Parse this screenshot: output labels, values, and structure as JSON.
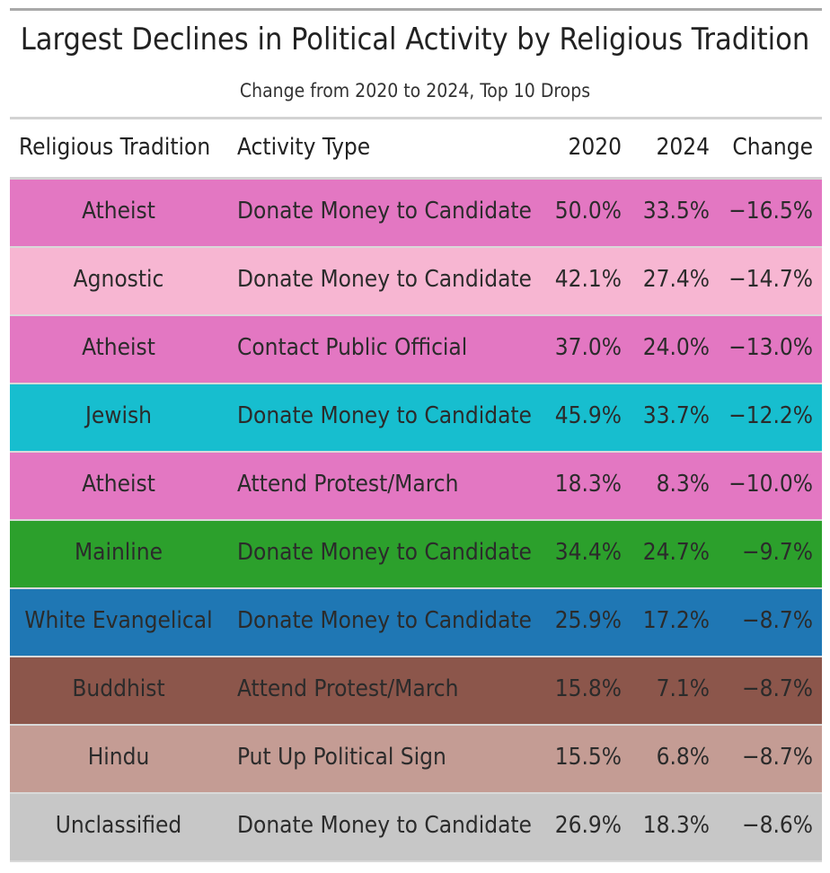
{
  "chart_data": {
    "type": "table",
    "title": "Largest Declines in Political Activity by Religious Tradition",
    "subtitle": "Change from 2020 to 2024, Top 10 Drops",
    "columns": [
      "Religious Tradition",
      "Activity Type",
      "2020",
      "2024",
      "Change"
    ],
    "rows": [
      {
        "tradition": "Atheist",
        "activity": "Donate Money to Candidate",
        "v2020": "50.0%",
        "v2024": "33.5%",
        "change": "−16.5%",
        "color": "#e377c2"
      },
      {
        "tradition": "Agnostic",
        "activity": "Donate Money to Candidate",
        "v2020": "42.1%",
        "v2024": "27.4%",
        "change": "−14.7%",
        "color": "#f7b6d2"
      },
      {
        "tradition": "Atheist",
        "activity": "Contact Public Official",
        "v2020": "37.0%",
        "v2024": "24.0%",
        "change": "−13.0%",
        "color": "#e377c2"
      },
      {
        "tradition": "Jewish",
        "activity": "Donate Money to Candidate",
        "v2020": "45.9%",
        "v2024": "33.7%",
        "change": "−12.2%",
        "color": "#17becf"
      },
      {
        "tradition": "Atheist",
        "activity": "Attend Protest/March",
        "v2020": "18.3%",
        "v2024": "8.3%",
        "change": "−10.0%",
        "color": "#e377c2"
      },
      {
        "tradition": "Mainline",
        "activity": "Donate Money to Candidate",
        "v2020": "34.4%",
        "v2024": "24.7%",
        "change": "−9.7%",
        "color": "#2ca02c"
      },
      {
        "tradition": "White Evangelical",
        "activity": "Donate Money to Candidate",
        "v2020": "25.9%",
        "v2024": "17.2%",
        "change": "−8.7%",
        "color": "#1f77b4"
      },
      {
        "tradition": "Buddhist",
        "activity": "Attend Protest/March",
        "v2020": "15.8%",
        "v2024": "7.1%",
        "change": "−8.7%",
        "color": "#8c564b"
      },
      {
        "tradition": "Hindu",
        "activity": "Put Up Political Sign",
        "v2020": "15.5%",
        "v2024": "6.8%",
        "change": "−8.7%",
        "color": "#c49c94"
      },
      {
        "tradition": "Unclassified",
        "activity": "Donate Money to Candidate",
        "v2020": "26.9%",
        "v2024": "18.3%",
        "change": "−8.6%",
        "color": "#c7c7c7"
      }
    ]
  }
}
